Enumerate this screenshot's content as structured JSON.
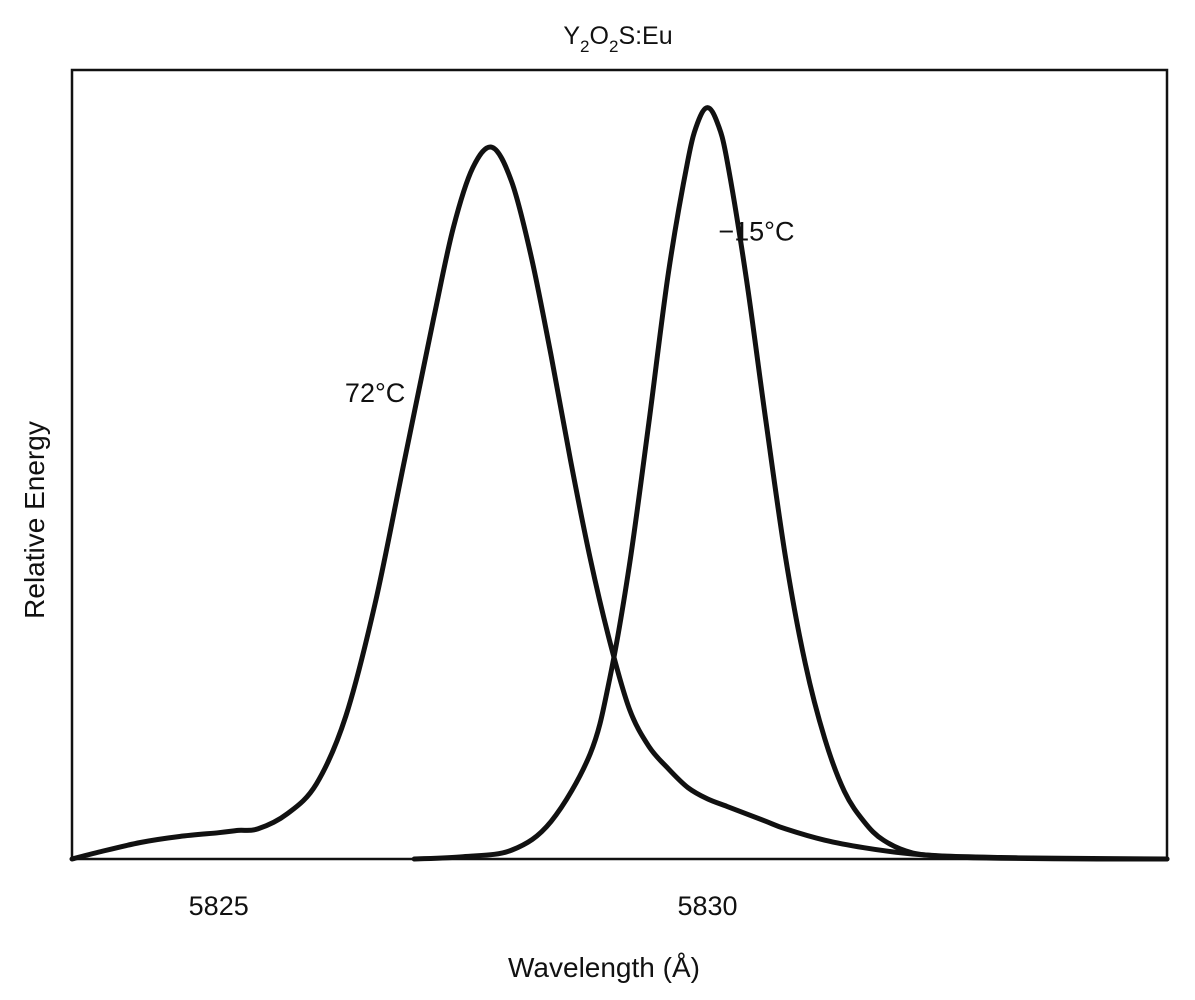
{
  "chart_data": {
    "type": "line",
    "title_parts": [
      {
        "text": "Y",
        "sub": false
      },
      {
        "text": "2",
        "sub": true
      },
      {
        "text": "O",
        "sub": false
      },
      {
        "text": "2",
        "sub": true
      },
      {
        "text": "S:Eu",
        "sub": false
      }
    ],
    "xlabel": "Wavelength (Å)",
    "ylabel": "Relative Energy",
    "xlim": [
      5823.5,
      5834.7
    ],
    "ylim": [
      0,
      1.05
    ],
    "xticks": [
      {
        "value": 5825,
        "label": "5825"
      },
      {
        "value": 5830,
        "label": "5830"
      }
    ],
    "grid": false,
    "legend": "none",
    "series": [
      {
        "name": "72°C",
        "x": [
          5823.5,
          5823.8,
          5824.2,
          5824.6,
          5825.0,
          5825.2,
          5825.4,
          5825.7,
          5826.0,
          5826.3,
          5826.6,
          5826.9,
          5827.2,
          5827.4,
          5827.6,
          5827.8,
          5828.0,
          5828.2,
          5828.4,
          5828.6,
          5828.8,
          5829.0,
          5829.2,
          5829.4,
          5829.6,
          5829.8,
          5830.0,
          5830.2,
          5830.4,
          5830.6,
          5830.8,
          5831.2,
          5831.6,
          5832.0,
          5832.4,
          5833.0,
          5833.6,
          5834.7
        ],
        "y": [
          0.0,
          0.01,
          0.022,
          0.03,
          0.035,
          0.038,
          0.04,
          0.06,
          0.1,
          0.19,
          0.34,
          0.53,
          0.72,
          0.84,
          0.92,
          0.947,
          0.9,
          0.8,
          0.67,
          0.53,
          0.4,
          0.29,
          0.2,
          0.15,
          0.12,
          0.095,
          0.08,
          0.07,
          0.06,
          0.05,
          0.04,
          0.025,
          0.015,
          0.008,
          0.004,
          0.002,
          0.001,
          0.0
        ]
      },
      {
        "name": "−15°C",
        "x": [
          5827.0,
          5827.5,
          5828.0,
          5828.4,
          5828.8,
          5829.0,
          5829.2,
          5829.4,
          5829.6,
          5829.8,
          5829.9,
          5830.0,
          5830.1,
          5830.2,
          5830.4,
          5830.6,
          5830.8,
          5831.0,
          5831.2,
          5831.4,
          5831.6,
          5831.8,
          5832.1,
          5832.5,
          5833.0,
          5834.0,
          5834.7
        ],
        "y": [
          0.0,
          0.003,
          0.012,
          0.05,
          0.14,
          0.24,
          0.39,
          0.58,
          0.78,
          0.93,
          0.98,
          1.0,
          0.98,
          0.93,
          0.77,
          0.58,
          0.4,
          0.26,
          0.16,
          0.09,
          0.05,
          0.025,
          0.008,
          0.003,
          0.001,
          0.0,
          0.0
        ]
      }
    ],
    "annotations": [
      {
        "text": "72°C",
        "x": 5826.6,
        "y": 0.62
      },
      {
        "text": "−15°C",
        "x": 5830.5,
        "y": 0.835
      }
    ]
  }
}
